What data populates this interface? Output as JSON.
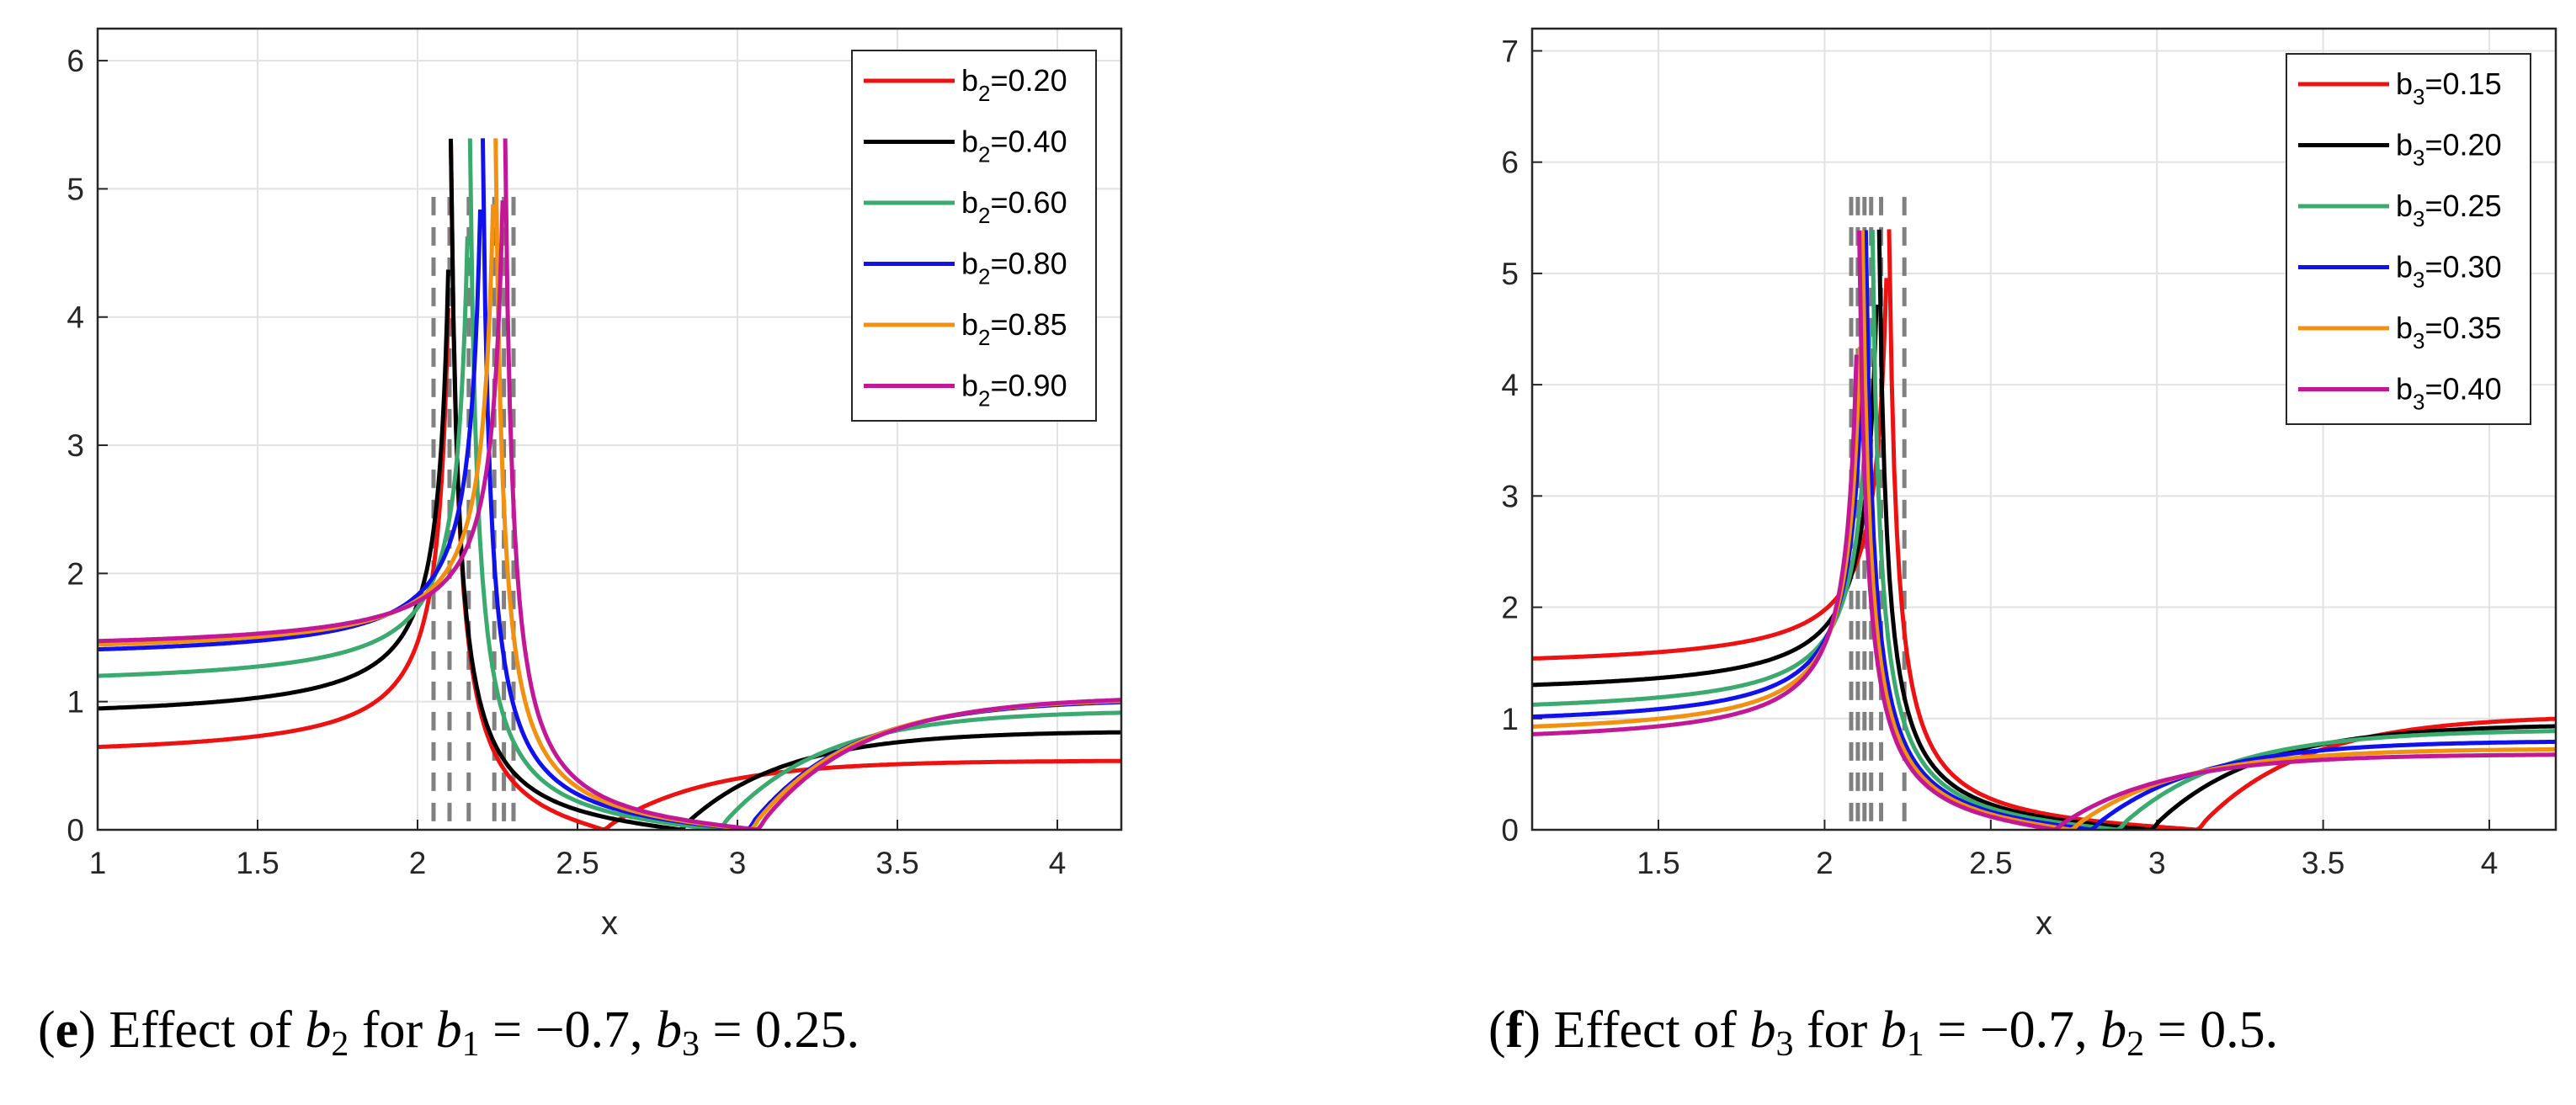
{
  "colors": {
    "red": "#ee1111",
    "black": "#000000",
    "green": "#3aaa6e",
    "blue": "#1111ee",
    "orange": "#f29010",
    "magenta": "#c21898",
    "asymptote": "#808080",
    "grid": "#e2e2e2"
  },
  "chart_data": [
    {
      "type": "line",
      "caption": {
        "label": "e",
        "text": "Effect of b2 for b1 = −0.7, b3 = 0.25.",
        "pre": "Effect of",
        "param": "b",
        "param_sub": "2",
        "mid": "for",
        "c1": "b",
        "c1_sub": "1",
        "c1_eq": "= −0.7,",
        "c2": "b",
        "c2_sub": "3",
        "c2_eq": "= 0.25."
      },
      "xlabel": "x",
      "ylabel": "",
      "xlim": [
        1,
        4.2
      ],
      "ylim": [
        0,
        6.25
      ],
      "xticks": [
        1,
        1.5,
        2,
        2.5,
        3,
        3.5,
        4
      ],
      "xtick_labels": [
        "1",
        "1.5",
        "2",
        "2.5",
        "3",
        "3.5",
        "4"
      ],
      "yticks": [
        0,
        1,
        2,
        3,
        4,
        5,
        6
      ],
      "ytick_labels": [
        "0",
        "1",
        "2",
        "3",
        "4",
        "5",
        "6"
      ],
      "grid": true,
      "legend_position": "top-right",
      "legend_var": "b",
      "legend_sub": "2",
      "asymptotes": [
        2.05,
        2.1,
        2.16,
        2.24,
        2.27,
        2.3
      ],
      "series": [
        {
          "name": "b2=0.20",
          "value": "=0.20",
          "color": "red",
          "pole": 2.1,
          "left_base": 0.54,
          "right_end": 0.54,
          "zero": 2.58
        },
        {
          "name": "b2=0.40",
          "value": "=0.40",
          "color": "black",
          "pole": 2.1,
          "left_base": 0.84,
          "right_end": 0.77,
          "zero": 2.82
        },
        {
          "name": "b2=0.60",
          "value": "=0.60",
          "color": "green",
          "pole": 2.16,
          "left_base": 1.1,
          "right_end": 0.93,
          "zero": 2.94
        },
        {
          "name": "b2=0.80",
          "value": "=0.80",
          "color": "blue",
          "pole": 2.2,
          "left_base": 1.31,
          "right_end": 1.02,
          "zero": 3.03
        },
        {
          "name": "b2=0.85",
          "value": "=0.85",
          "color": "orange",
          "pole": 2.24,
          "left_base": 1.35,
          "right_end": 1.03,
          "zero": 3.04
        },
        {
          "name": "b2=0.90",
          "value": "=0.90",
          "color": "magenta",
          "pole": 2.27,
          "left_base": 1.38,
          "right_end": 1.04,
          "zero": 3.06
        }
      ]
    },
    {
      "type": "line",
      "caption": {
        "label": "f",
        "text": "Effect of b3 for b1 = −0.7, b2 = 0.5.",
        "pre": "Effect of",
        "param": "b",
        "param_sub": "3",
        "mid": "for",
        "c1": "b",
        "c1_sub": "1",
        "c1_eq": "= −0.7,",
        "c2": "b",
        "c2_sub": "2",
        "c2_eq": "= 0.5."
      },
      "xlabel": "x",
      "ylabel": "",
      "xlim": [
        1.12,
        4.2
      ],
      "ylim": [
        0,
        7.2
      ],
      "xticks": [
        1.5,
        2,
        2.5,
        3,
        3.5,
        4
      ],
      "xtick_labels": [
        "1.5",
        "2",
        "2.5",
        "3",
        "3.5",
        "4"
      ],
      "yticks": [
        0,
        1,
        2,
        3,
        4,
        5,
        6,
        7
      ],
      "ytick_labels": [
        "0",
        "1",
        "2",
        "3",
        "4",
        "5",
        "6",
        "7"
      ],
      "grid": true,
      "legend_position": "top-right",
      "legend_var": "b",
      "legend_sub": "3",
      "asymptotes": [
        2.08,
        2.1,
        2.12,
        2.14,
        2.17,
        2.24
      ],
      "series": [
        {
          "name": "b3=0.15",
          "value": "=0.15",
          "color": "red",
          "pole": 2.19,
          "left_base": 1.43,
          "right_end": 1.03,
          "zero": 3.12
        },
        {
          "name": "b3=0.20",
          "value": "=0.20",
          "color": "black",
          "pole": 2.16,
          "left_base": 1.19,
          "right_end": 0.95,
          "zero": 2.98
        },
        {
          "name": "b3=0.25",
          "value": "=0.25",
          "color": "green",
          "pole": 2.14,
          "left_base": 1.01,
          "right_end": 0.9,
          "zero": 2.88
        },
        {
          "name": "b3=0.30",
          "value": "=0.30",
          "color": "blue",
          "pole": 2.12,
          "left_base": 0.9,
          "right_end": 0.8,
          "zero": 2.8
        },
        {
          "name": "b3=0.35",
          "value": "=0.35",
          "color": "orange",
          "pole": 2.11,
          "left_base": 0.81,
          "right_end": 0.73,
          "zero": 2.74
        },
        {
          "name": "b3=0.40",
          "value": "=0.40",
          "color": "magenta",
          "pole": 2.1,
          "left_base": 0.74,
          "right_end": 0.68,
          "zero": 2.69
        }
      ]
    }
  ]
}
